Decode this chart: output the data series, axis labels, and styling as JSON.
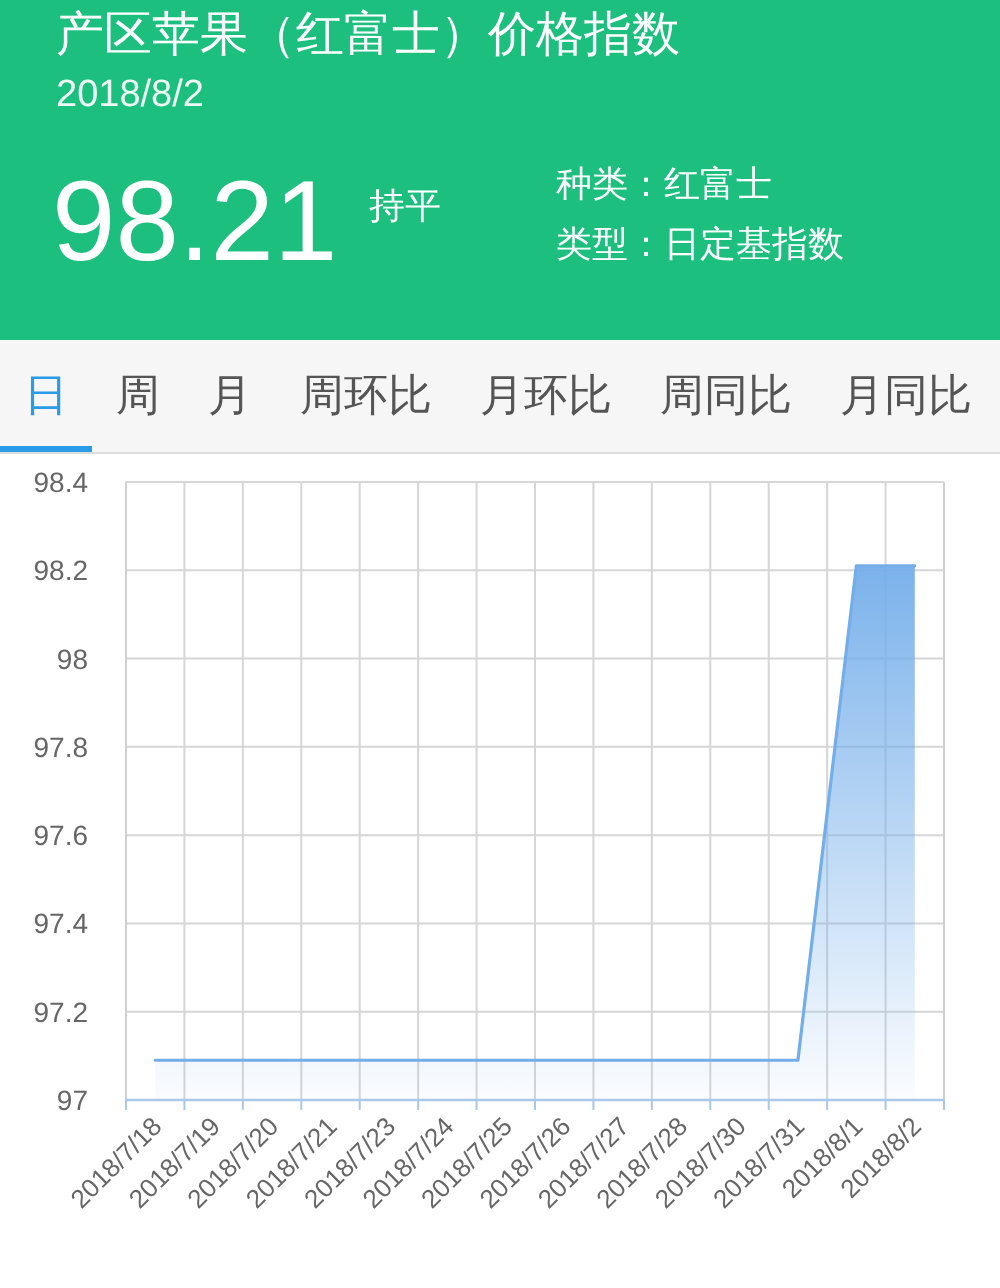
{
  "chart_data": {
    "type": "area",
    "title": "产区苹果（红富士）价格指数",
    "subtitle": "2018/8/2",
    "annotations": [
      "98.21",
      "持平",
      "种类：红富士",
      "类型：日定基指数",
      "日",
      "周",
      "月",
      "周环比",
      "月环比",
      "周同比",
      "月同比"
    ],
    "categories": [
      "2018/7/18",
      "2018/7/19",
      "2018/7/20",
      "2018/7/21",
      "2018/7/23",
      "2018/7/24",
      "2018/7/25",
      "2018/7/26",
      "2018/7/27",
      "2018/7/28",
      "2018/7/30",
      "2018/7/31",
      "2018/8/1",
      "2018/8/2"
    ],
    "values": [
      97.09,
      97.09,
      97.09,
      97.09,
      97.09,
      97.09,
      97.09,
      97.09,
      97.09,
      97.09,
      97.09,
      97.09,
      98.21,
      98.21
    ],
    "color": "#74aeea",
    "ylim": [
      97,
      98.4
    ],
    "yticks": [
      97,
      97.2,
      97.4,
      97.6,
      97.8,
      98,
      98.2,
      98.4
    ],
    "grid": true
  }
}
